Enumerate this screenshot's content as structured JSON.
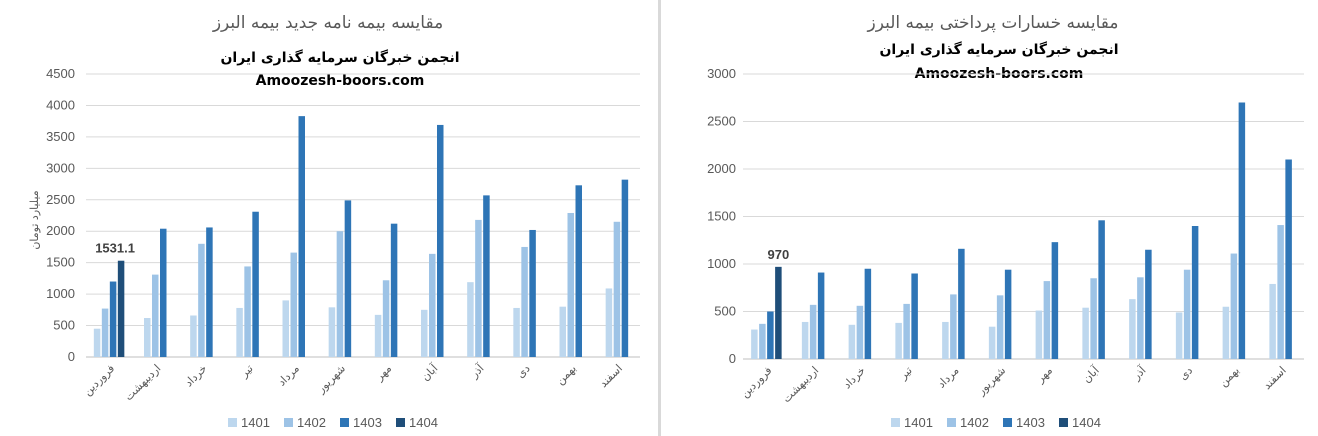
{
  "colors": {
    "s1401": "#bdd7ee",
    "s1402": "#9dc3e6",
    "s1403": "#2e75b6",
    "s1404": "#1f4e79",
    "grid": "#d9d9d9",
    "axis": "#bfbfbf"
  },
  "chart_data": [
    {
      "type": "bar",
      "title": "مقایسه بیمه نامه جدید بیمه البرز",
      "subtitle": "انجمن خبرگان سرمایه گذاری ایران",
      "watermark": "Amoozesh-boors.com",
      "ylabel": "میلیارد تومان",
      "xlabel": "",
      "ylim": [
        0,
        4500
      ],
      "ytick_step": 500,
      "yticks": [
        "0",
        "500",
        "1000",
        "1500",
        "2000",
        "2500",
        "3000",
        "3500",
        "4000",
        "4500"
      ],
      "grid": true,
      "legend_position": "bottom",
      "categories": [
        "فروردین",
        "اردیبهشت",
        "خرداد",
        "تیر",
        "مرداد",
        "شهریور",
        "مهر",
        "آبان",
        "آذر",
        "دی",
        "بهمن",
        "اسفند"
      ],
      "series": [
        {
          "name": "1401",
          "values": [
            450,
            620,
            660,
            780,
            900,
            790,
            670,
            750,
            1190,
            780,
            800,
            1090
          ]
        },
        {
          "name": "1402",
          "values": [
            770,
            1310,
            1800,
            1440,
            1660,
            2000,
            1220,
            1640,
            2180,
            1750,
            2290,
            2150
          ]
        },
        {
          "name": "1403",
          "values": [
            1200,
            2040,
            2060,
            2310,
            3830,
            2490,
            2120,
            3690,
            2570,
            2020,
            2730,
            2820
          ]
        },
        {
          "name": "1404",
          "values": [
            1531.1,
            null,
            null,
            null,
            null,
            null,
            null,
            null,
            null,
            null,
            null,
            null
          ]
        }
      ],
      "data_labels": [
        {
          "series": "1404",
          "category": "فروردین",
          "text": "1531.1"
        }
      ]
    },
    {
      "type": "bar",
      "title": "مقایسه خسارات پرداختی بیمه البرز",
      "subtitle": "انجمن خبرگان سرمایه گذاری ایران",
      "watermark": "Amoozesh-boors.com",
      "ylabel": "",
      "xlabel": "",
      "ylim": [
        0,
        3000
      ],
      "ytick_step": 500,
      "yticks": [
        "0",
        "500",
        "1000",
        "1500",
        "2000",
        "2500",
        "3000"
      ],
      "grid": true,
      "legend_position": "bottom",
      "categories": [
        "فروردین",
        "اردیبهشت",
        "خرداد",
        "تیر",
        "مرداد",
        "شهریور",
        "مهر",
        "آبان",
        "آذر",
        "دی",
        "بهمن",
        "اسفند"
      ],
      "series": [
        {
          "name": "1401",
          "values": [
            310,
            390,
            360,
            380,
            390,
            340,
            510,
            540,
            630,
            490,
            550,
            790
          ]
        },
        {
          "name": "1402",
          "values": [
            370,
            570,
            560,
            580,
            680,
            670,
            820,
            850,
            860,
            940,
            1110,
            1410
          ]
        },
        {
          "name": "1403",
          "values": [
            500,
            910,
            950,
            900,
            1160,
            940,
            1230,
            1460,
            1150,
            1400,
            2700,
            2100
          ]
        },
        {
          "name": "1404",
          "values": [
            970,
            null,
            null,
            null,
            null,
            null,
            null,
            null,
            null,
            null,
            null,
            null
          ]
        }
      ],
      "data_labels": [
        {
          "series": "1404",
          "category": "فروردین",
          "text": "970"
        }
      ]
    }
  ]
}
